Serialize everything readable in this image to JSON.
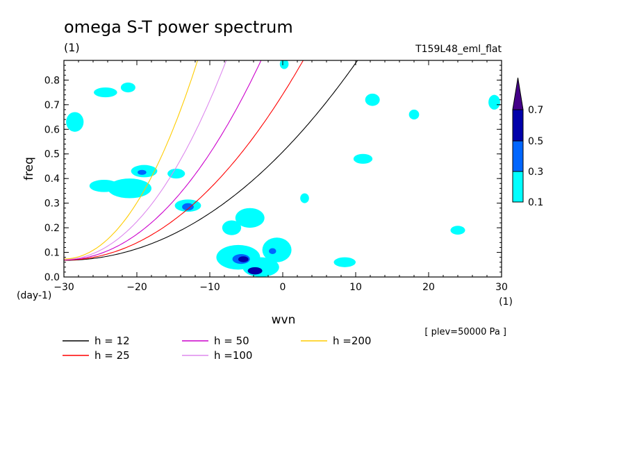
{
  "chart_data": {
    "type": "contour",
    "title": "omega S-T power spectrum",
    "units_label": "(1)",
    "run_label": "T159L48_eml_flat",
    "xlabel": "wvn",
    "ylabel": "freq",
    "x_units": "(1)",
    "y_units": "(day-1)",
    "xlim": [
      -30,
      30
    ],
    "ylim": [
      0,
      0.88
    ],
    "xticks": [
      -30,
      -20,
      -10,
      0,
      10,
      20,
      30
    ],
    "xtick_labels": [
      "−30",
      "−20",
      "−10",
      "0",
      "10",
      "20",
      "30"
    ],
    "yticks": [
      0,
      0.1,
      0.2,
      0.3,
      0.4,
      0.5,
      0.6,
      0.7,
      0.8
    ],
    "ytick_labels": [
      "0.0",
      "0.1",
      "0.2",
      "0.3",
      "0.4",
      "0.5",
      "0.6",
      "0.7",
      "0.8"
    ],
    "annotation": "[ plev=50000 Pa ]",
    "colorbar": {
      "levels": [
        "0.1",
        "0.3",
        "0.5",
        "0.7"
      ],
      "colors": [
        "#00ffff",
        "#0066ff",
        "#0000aa",
        "#440088"
      ]
    },
    "dispersion_curves": [
      {
        "name": "h = 12",
        "h": 12,
        "color": "#000000"
      },
      {
        "name": "h = 25",
        "h": 25,
        "color": "#ff0000"
      },
      {
        "name": "h = 50",
        "h": 50,
        "color": "#cc00cc"
      },
      {
        "name": "h =100",
        "h": 100,
        "color": "#dd88ee"
      },
      {
        "name": "h =200",
        "h": 200,
        "color": "#ffcc00"
      }
    ],
    "contour_patches": [
      {
        "x": -5.7,
        "y": 0.073,
        "rx": 1.2,
        "ry": 0.02,
        "level": 1
      },
      {
        "x": -5.4,
        "y": 0.072,
        "rx": 0.7,
        "ry": 0.012,
        "level": 2
      },
      {
        "x": -3.8,
        "y": 0.025,
        "rx": 1.0,
        "ry": 0.015,
        "level": 2
      },
      {
        "x": -1.4,
        "y": 0.105,
        "rx": 0.5,
        "ry": 0.012,
        "level": 1
      },
      {
        "x": -13.0,
        "y": 0.285,
        "rx": 0.8,
        "ry": 0.015,
        "level": 1
      },
      {
        "x": -19.3,
        "y": 0.425,
        "rx": 0.6,
        "ry": 0.01,
        "level": 1
      },
      {
        "x": -6.1,
        "y": 0.08,
        "rx": 3.0,
        "ry": 0.05,
        "level": 0
      },
      {
        "x": -3.0,
        "y": 0.04,
        "rx": 2.5,
        "ry": 0.04,
        "level": 0
      },
      {
        "x": -0.8,
        "y": 0.11,
        "rx": 2.0,
        "ry": 0.05,
        "level": 0
      },
      {
        "x": -4.5,
        "y": 0.24,
        "rx": 2.0,
        "ry": 0.04,
        "level": 0
      },
      {
        "x": -7.0,
        "y": 0.2,
        "rx": 1.3,
        "ry": 0.03,
        "level": 0
      },
      {
        "x": -21.0,
        "y": 0.36,
        "rx": 3.0,
        "ry": 0.04,
        "level": 0
      },
      {
        "x": -24.5,
        "y": 0.37,
        "rx": 2.0,
        "ry": 0.025,
        "level": 0
      },
      {
        "x": -19.0,
        "y": 0.43,
        "rx": 1.8,
        "ry": 0.025,
        "level": 0
      },
      {
        "x": -13.0,
        "y": 0.29,
        "rx": 1.8,
        "ry": 0.025,
        "level": 0
      },
      {
        "x": -28.5,
        "y": 0.63,
        "rx": 1.2,
        "ry": 0.04,
        "level": 0
      },
      {
        "x": -24.3,
        "y": 0.75,
        "rx": 1.6,
        "ry": 0.02,
        "level": 0
      },
      {
        "x": -21.2,
        "y": 0.77,
        "rx": 1.0,
        "ry": 0.02,
        "level": 0
      },
      {
        "x": -14.6,
        "y": 0.42,
        "rx": 1.2,
        "ry": 0.02,
        "level": 0
      },
      {
        "x": 12.3,
        "y": 0.72,
        "rx": 1.0,
        "ry": 0.025,
        "level": 0
      },
      {
        "x": 11.0,
        "y": 0.48,
        "rx": 1.3,
        "ry": 0.02,
        "level": 0
      },
      {
        "x": 3.0,
        "y": 0.32,
        "rx": 0.6,
        "ry": 0.02,
        "level": 0
      },
      {
        "x": 18.0,
        "y": 0.66,
        "rx": 0.7,
        "ry": 0.02,
        "level": 0
      },
      {
        "x": 0.2,
        "y": 0.865,
        "rx": 0.6,
        "ry": 0.02,
        "level": 0
      },
      {
        "x": 8.5,
        "y": 0.06,
        "rx": 1.5,
        "ry": 0.02,
        "level": 0
      },
      {
        "x": 24.0,
        "y": 0.19,
        "rx": 1.0,
        "ry": 0.018,
        "level": 0
      },
      {
        "x": 29.0,
        "y": 0.71,
        "rx": 0.8,
        "ry": 0.03,
        "level": 0
      }
    ]
  },
  "legend": [
    {
      "label": "h = 12",
      "color": "#000000"
    },
    {
      "label": "h = 50",
      "color": "#cc00cc"
    },
    {
      "label": "h =200",
      "color": "#ffcc00"
    },
    {
      "label": "h = 25",
      "color": "#ff0000"
    },
    {
      "label": "h =100",
      "color": "#dd88ee"
    }
  ]
}
